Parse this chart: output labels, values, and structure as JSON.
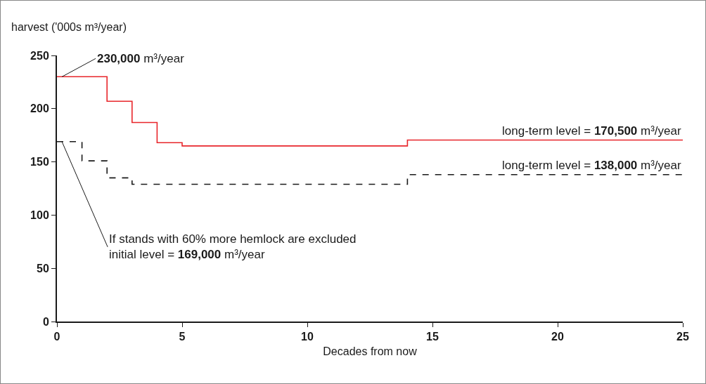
{
  "chart_data": {
    "type": "step",
    "xlabel": "Decades from now",
    "ylabel": "harvest ('000s m³/year)",
    "xlim": [
      0,
      25
    ],
    "xticks": [
      0,
      5,
      10,
      15,
      20,
      25
    ],
    "ylim": [
      0,
      250
    ],
    "yticks": [
      0,
      50,
      100,
      150,
      200,
      250
    ],
    "grid": false,
    "series": [
      {
        "color": "#e8262b",
        "line_style": "solid",
        "x": [
          0,
          2,
          3,
          4,
          5,
          14,
          25
        ],
        "values": [
          230,
          207,
          187,
          168,
          165,
          170.5,
          170.5
        ]
      },
      {
        "color": "#1a1a1a",
        "line_style": "dashed",
        "x": [
          0,
          1,
          2,
          3,
          14,
          25
        ],
        "values": [
          169,
          151,
          135,
          129,
          138,
          138
        ]
      }
    ],
    "annotations": [
      {
        "text": "230,000 m³/year",
        "x": 0.2,
        "y": 230
      },
      "long-term level = 170,500 m³/year",
      "long-term level = 138,000 m³/year",
      {
        "text": "If stands with 60% more hemlock are excluded\ninitial level = 169,000 m³/year",
        "x": 0.2,
        "y": 169
      }
    ]
  }
}
